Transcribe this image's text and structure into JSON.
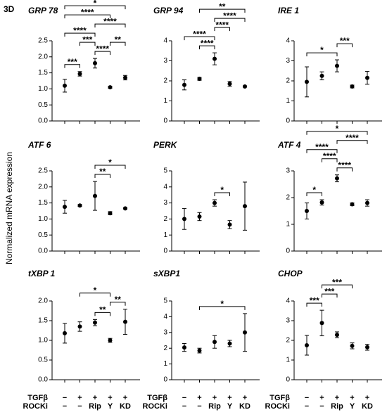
{
  "figure_label": "3D",
  "y_label": "Normalized mRNA expression",
  "chart_data": [
    {
      "type": "dot",
      "title": "GRP 78",
      "categories": [
        null,
        null,
        null,
        null,
        null
      ],
      "values": [
        1.1,
        1.47,
        1.8,
        1.05,
        1.35
      ],
      "errors": [
        0.2,
        0.07,
        0.15,
        0.03,
        0.07
      ],
      "ylim": [
        0,
        2.5
      ],
      "yticks": [
        {
          "value": 0,
          "label": "0.0"
        },
        0.5,
        {
          "value": 1,
          "label": "1.0"
        },
        1.5,
        {
          "value": 2,
          "label": "2.0"
        },
        2.5
      ],
      "significance": [
        {
          "from": 0,
          "to": 1,
          "label": "***"
        },
        {
          "from": 2,
          "to": 3,
          "label": "****"
        },
        {
          "from": 1,
          "to": 2,
          "label": "***"
        },
        {
          "from": 3,
          "to": 4,
          "label": "**"
        },
        {
          "from": 0,
          "to": 2,
          "label": "****"
        },
        {
          "from": 2,
          "to": 4,
          "label": "****"
        },
        {
          "from": 0,
          "to": 3,
          "label": "****"
        },
        {
          "from": 0,
          "to": 4,
          "label": "*"
        }
      ]
    },
    {
      "type": "dot",
      "title": "GRP 94",
      "categories": [
        null,
        null,
        null,
        null,
        null
      ],
      "values": [
        1.8,
        2.1,
        3.1,
        1.85,
        1.72
      ],
      "errors": [
        0.25,
        0.07,
        0.3,
        0.12,
        0.03
      ],
      "ylim": [
        0,
        4
      ],
      "yticks": [
        0,
        1,
        2,
        3,
        4
      ],
      "significance": [
        {
          "from": 1,
          "to": 2,
          "label": "****"
        },
        {
          "from": 0,
          "to": 2,
          "label": "****"
        },
        {
          "from": 2,
          "to": 3,
          "label": "****"
        },
        {
          "from": 2,
          "to": 4,
          "label": "****"
        },
        {
          "from": 1,
          "to": 4,
          "label": "**"
        }
      ]
    },
    {
      "type": "dot",
      "title": "IRE 1",
      "categories": [
        null,
        null,
        null,
        null,
        null
      ],
      "values": [
        1.95,
        2.25,
        2.75,
        1.72,
        2.15
      ],
      "errors": [
        0.75,
        0.2,
        0.3,
        0.07,
        0.32
      ],
      "ylim": [
        0,
        4
      ],
      "yticks": [
        0,
        1,
        2,
        3,
        4
      ],
      "significance": [
        {
          "from": 0,
          "to": 2,
          "label": "*"
        },
        {
          "from": 2,
          "to": 3,
          "label": "***"
        }
      ]
    },
    {
      "type": "dot",
      "title": "ATF 6",
      "categories": [
        null,
        null,
        null,
        null,
        null
      ],
      "values": [
        1.38,
        1.42,
        1.72,
        1.18,
        1.33
      ],
      "errors": [
        0.2,
        0.03,
        0.45,
        0.05,
        0.02
      ],
      "ylim": [
        0,
        2.5
      ],
      "yticks": [
        {
          "value": 0,
          "label": "0.0"
        },
        0.5,
        {
          "value": 1,
          "label": "1.0"
        },
        1.5,
        {
          "value": 2,
          "label": "2.0"
        },
        2.5
      ],
      "significance": [
        {
          "from": 2,
          "to": 3,
          "label": "**"
        },
        {
          "from": 2,
          "to": 4,
          "label": "*"
        }
      ]
    },
    {
      "type": "dot",
      "title": "PERK",
      "categories": [
        null,
        null,
        null,
        null,
        null
      ],
      "values": [
        2.0,
        2.15,
        3.0,
        1.65,
        2.8
      ],
      "errors": [
        0.65,
        0.25,
        0.2,
        0.25,
        1.5
      ],
      "ylim": [
        0,
        5
      ],
      "yticks": [
        0,
        1,
        2,
        3,
        4,
        5
      ],
      "significance": [
        {
          "from": 2,
          "to": 3,
          "label": "*"
        }
      ]
    },
    {
      "type": "dot",
      "title": "ATF 4",
      "categories": [
        null,
        null,
        null,
        null,
        null
      ],
      "values": [
        1.5,
        1.82,
        2.72,
        1.75,
        1.8
      ],
      "errors": [
        0.3,
        0.1,
        0.13,
        0.05,
        0.12
      ],
      "ylim": [
        0,
        3
      ],
      "yticks": [
        0,
        1,
        2,
        3
      ],
      "significance": [
        {
          "from": 0,
          "to": 1,
          "label": "*"
        },
        {
          "from": 2,
          "to": 3,
          "label": "****"
        },
        {
          "from": 1,
          "to": 2,
          "label": "****"
        },
        {
          "from": 0,
          "to": 2,
          "label": "****"
        },
        {
          "from": 2,
          "to": 4,
          "label": "****"
        },
        {
          "from": 0,
          "to": 4,
          "label": "*"
        }
      ]
    },
    {
      "type": "dot",
      "title": "tXBP 1",
      "categories": [
        null,
        null,
        null,
        null,
        null
      ],
      "values": [
        1.18,
        1.35,
        1.45,
        1.0,
        1.47
      ],
      "errors": [
        0.25,
        0.12,
        0.08,
        0.05,
        0.32
      ],
      "ylim": [
        0,
        2
      ],
      "yticks": [
        {
          "value": 0,
          "label": "0.0"
        },
        0.5,
        {
          "value": 1,
          "label": "1.0"
        },
        1.5,
        {
          "value": 2,
          "label": "2.0"
        }
      ],
      "significance": [
        {
          "from": 2,
          "to": 3,
          "label": "**"
        },
        {
          "from": 3,
          "to": 4,
          "label": "**"
        },
        {
          "from": 1,
          "to": 3,
          "label": "*"
        }
      ],
      "condition_rows": [
        {
          "name": "TGFβ",
          "labels": [
            "−",
            "+",
            "+",
            "+",
            "+"
          ]
        },
        {
          "name": "ROCKi",
          "labels": [
            "−",
            "−",
            "Rip",
            "Y",
            "KD"
          ]
        }
      ]
    },
    {
      "type": "dot",
      "title": "sXBP1",
      "categories": [
        null,
        null,
        null,
        null,
        null
      ],
      "values": [
        2.05,
        1.85,
        2.4,
        2.3,
        3.0
      ],
      "errors": [
        0.25,
        0.15,
        0.4,
        0.2,
        1.2
      ],
      "ylim": [
        0,
        5
      ],
      "yticks": [
        0,
        1,
        2,
        3,
        4,
        5
      ],
      "significance": [
        {
          "from": 1,
          "to": 4,
          "label": "*"
        }
      ],
      "condition_rows": [
        {
          "name": "TGFβ",
          "labels": [
            "−",
            "+",
            "+",
            "+",
            "+"
          ]
        },
        {
          "name": "ROCKi",
          "labels": [
            "−",
            "−",
            "Rip",
            "Y",
            "KD"
          ]
        }
      ]
    },
    {
      "type": "dot",
      "title": "CHOP",
      "categories": [
        null,
        null,
        null,
        null,
        null
      ],
      "values": [
        1.75,
        2.88,
        2.28,
        1.72,
        1.65
      ],
      "errors": [
        0.5,
        0.65,
        0.15,
        0.15,
        0.15
      ],
      "ylim": [
        0,
        4
      ],
      "yticks": [
        0,
        1,
        2,
        3,
        4
      ],
      "significance": [
        {
          "from": 0,
          "to": 1,
          "label": "***"
        },
        {
          "from": 1,
          "to": 2,
          "label": "***"
        },
        {
          "from": 1,
          "to": 3,
          "label": "***"
        }
      ],
      "condition_rows": [
        {
          "name": "TGFβ",
          "labels": [
            "−",
            "+",
            "+",
            "+",
            "+"
          ]
        },
        {
          "name": "ROCKi",
          "labels": [
            "−",
            "−",
            "Rip",
            "Y",
            "KD"
          ]
        }
      ]
    }
  ]
}
